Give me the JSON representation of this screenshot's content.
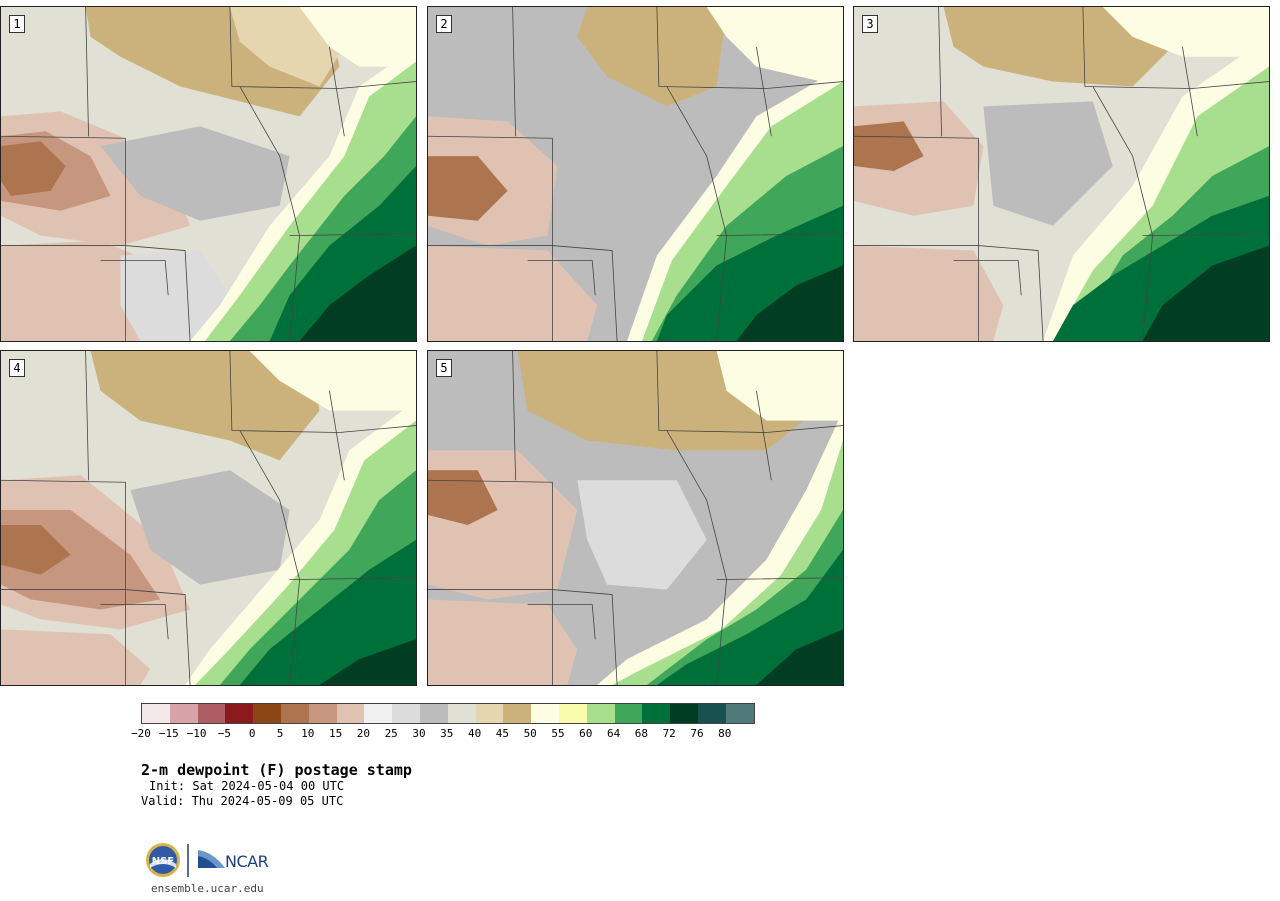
{
  "panels": [
    {
      "label": "1",
      "variant": 0
    },
    {
      "label": "2",
      "variant": 1
    },
    {
      "label": "3",
      "variant": 2
    },
    {
      "label": "4",
      "variant": 3
    },
    {
      "label": "5",
      "variant": 4
    }
  ],
  "colorbar": {
    "colors": [
      "#f4e9e9",
      "#d8a3a8",
      "#b05c63",
      "#8b1a1f",
      "#8c4514",
      "#ad7450",
      "#c6977e",
      "#e0c2b2",
      "#f0f0f0",
      "#dcdcdc",
      "#bcbcbc",
      "#e0e0d4",
      "#e6d6b0",
      "#cbb27c",
      "#fdfde4",
      "#f9fbad",
      "#a8df8e",
      "#3fa65a",
      "#00703a",
      "#013d23",
      "#17504e",
      "#507a7a"
    ],
    "ticks": [
      "−20",
      "−15",
      "−10",
      "−5",
      "0",
      "5",
      "10",
      "15",
      "20",
      "25",
      "30",
      "35",
      "40",
      "45",
      "50",
      "55",
      "60",
      "64",
      "68",
      "72",
      "76",
      "80"
    ]
  },
  "title": "2-m dewpoint (F) postage stamp",
  "init_line": "Init: Sat 2024-05-04 00 UTC",
  "valid_line": "Valid: Thu 2024-05-09 05 UTC",
  "footer": {
    "nsf_logo": "NSF",
    "ncar_logo": "NCAR",
    "url": "ensemble.ucar.edu"
  }
}
